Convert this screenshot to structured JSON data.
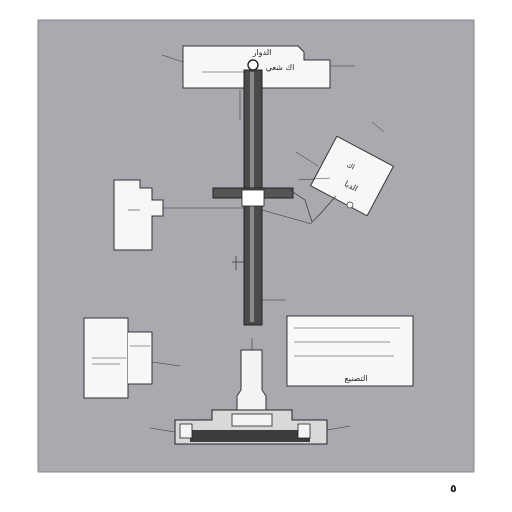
{
  "page": {
    "number": "٥"
  },
  "colors": {
    "background": "#a8a8ae",
    "panel_fill": "#ffffff",
    "line": "#2a2a2a",
    "shaft_dark": "#444444",
    "base_dark": "#3a3a3a"
  },
  "labels": {
    "top_title": "الدوار",
    "top_sub": "اك شعي",
    "note_a": "اك",
    "note_b": "الدبا",
    "legend_title": "التصنيع"
  },
  "icons": [
    "tilted-note-card",
    "shaft",
    "base-plate"
  ]
}
